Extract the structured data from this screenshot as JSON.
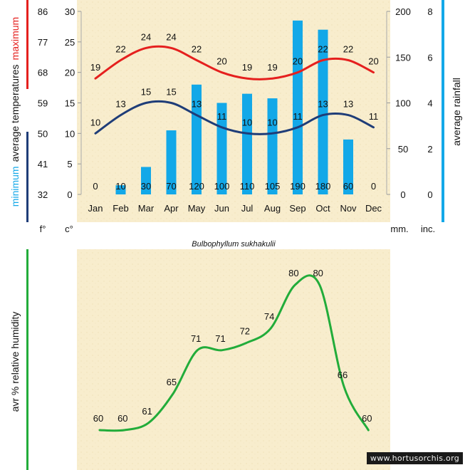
{
  "watermark": "www.hortusorchis.org",
  "colors": {
    "max": "#e5201e",
    "min": "#1f3d78",
    "rain": "#13a8e8",
    "humidity": "#22ac3a"
  },
  "chart_data": [
    {
      "type": "line+bar",
      "title": "Bulbophyllum sukhakulii",
      "categories": [
        "Jan",
        "Feb",
        "Mar",
        "Apr",
        "May",
        "Jun",
        "Jul",
        "Aug",
        "Sep",
        "Oct",
        "Nov",
        "Dec"
      ],
      "series": [
        {
          "name": "maximum",
          "values": [
            19,
            22,
            24,
            24,
            22,
            20,
            19,
            19,
            20,
            22,
            22,
            20
          ],
          "labels": [
            "19",
            "22",
            "24",
            "24",
            "22",
            "20",
            "19",
            "19",
            "20",
            "22",
            "22",
            "20"
          ]
        },
        {
          "name": "minimum",
          "values": [
            10,
            13,
            15,
            15,
            13,
            11,
            10,
            10,
            11,
            13,
            13,
            11
          ],
          "labels": [
            "10",
            "13",
            "15",
            "15",
            "13",
            "11",
            "10",
            "10",
            "11",
            "13",
            "13",
            "11"
          ]
        },
        {
          "name": "average rainfall",
          "values": [
            0,
            10,
            30,
            70,
            120,
            100,
            110,
            105,
            190,
            180,
            60,
            0
          ],
          "labels": [
            "0",
            "10",
            "30",
            "70",
            "120",
            "100",
            "110",
            "105",
            "190",
            "180",
            "60",
            "0"
          ]
        }
      ],
      "axes": {
        "fahrenheit": {
          "label": "f°",
          "ticks": [
            "32",
            "41",
            "50",
            "59",
            "68",
            "77",
            "86"
          ]
        },
        "celsius": {
          "label": "c°",
          "ticks": [
            "0",
            "5",
            "10",
            "15",
            "20",
            "25",
            "30"
          ],
          "ylim": [
            0,
            30
          ]
        },
        "mm": {
          "label": "mm.",
          "ticks": [
            "0",
            "50",
            "100",
            "150",
            "200"
          ],
          "ylim": [
            0,
            200
          ]
        },
        "inches": {
          "label": "inc.",
          "ticks": [
            "0",
            "2",
            "4",
            "6",
            "8"
          ]
        }
      },
      "left_label": {
        "min_word": "minimum",
        "mid_text": "average  temperatures",
        "max_word": "maximum"
      },
      "right_label": "average rainfall"
    },
    {
      "type": "line",
      "ylabel": "avr % relative humidity",
      "categories": [
        "Jan",
        "Feb",
        "Mar",
        "Apr",
        "May",
        "Jun",
        "Jul",
        "Aug",
        "Sep",
        "Oct",
        "Nov",
        "Dec"
      ],
      "values": [
        60,
        60,
        61,
        65,
        71,
        71,
        72,
        74,
        80,
        80,
        66,
        60
      ],
      "labels": [
        "60",
        "60",
        "61",
        "65",
        "71",
        "71",
        "72",
        "74",
        "80",
        "80",
        "66",
        "60"
      ]
    }
  ]
}
